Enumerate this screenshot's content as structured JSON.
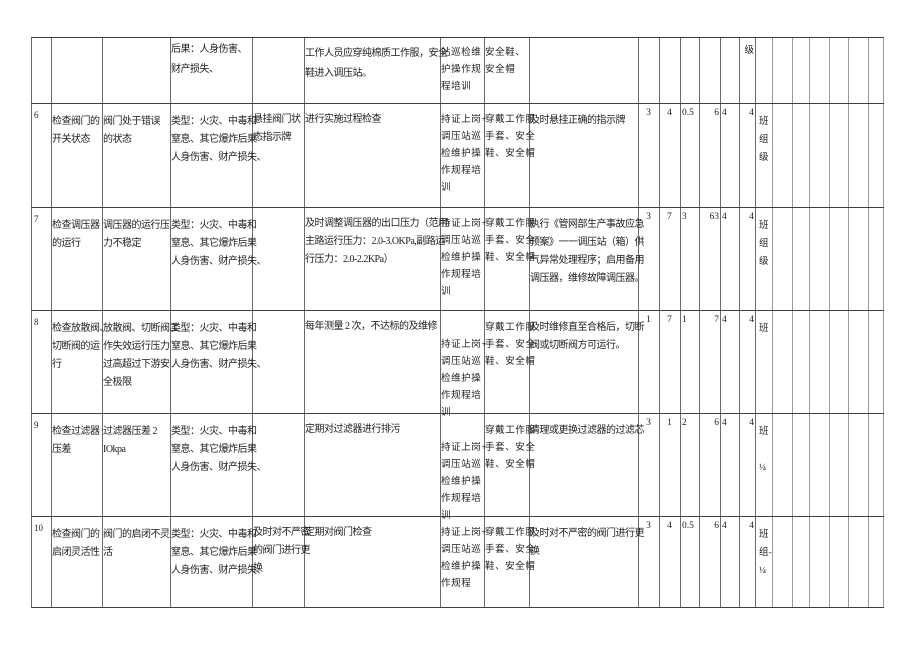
{
  "page": {
    "background": "#ffffff",
    "text_color": "#212121"
  },
  "grid_colors": {
    "horizontal": "#3f3f3f",
    "vertical": "#6a6a6a",
    "vertical_light": "#9a9a9a"
  },
  "table": {
    "rows": [
      {
        "serial_no": "",
        "inspection_item": "",
        "hazard_description": "",
        "risk_type_consequence": "后果：人身伤害、\n财产损失、",
        "engineering_measure": "",
        "management_measure": "工作人员应穿纯棉质工作服，安全\n鞋进入调压站。",
        "training_measure": "站巡检维\n护操作规\n程培训",
        "ppe_measure": "安全鞋、\n安全帽",
        "emergency_measure": "",
        "l": "",
        "e": "",
        "c": "",
        "d": "",
        "risk_grade": "",
        "control_grade": "级",
        "control_level": ""
      },
      {
        "serial_no": "6",
        "inspection_item": "检查阀门的\n开关状态",
        "hazard_description": "阀门处于错误\n的状态",
        "risk_type_consequence": "类型：火灾、中毒和\n窒息、其它爆炸后果\n人身伤害、财产损失、",
        "engineering_measure": "悬挂阀门状\n态指示牌",
        "management_measure": "进行实施过程检查",
        "training_measure": "持证上岗+\n调压站巡\n检维护操\n作规程培\n训",
        "ppe_measure": "穿戴工作服\n手套、安全\n鞋、安全帽",
        "emergency_measure": "及时悬挂正确的指示牌",
        "l": "3",
        "e": "4",
        "c": "0.5",
        "d": "6",
        "risk_grade": "4",
        "control_grade": "4",
        "control_level": "班\n组\n级"
      },
      {
        "serial_no": "7",
        "inspection_item": "检查调压器\n的运行",
        "hazard_description": "调压器的运行压\n力不稳定",
        "risk_type_consequence": "类型：火灾、中毒和\n窒息、其它爆炸后果\n人身伤害、财产损失、",
        "engineering_measure": "",
        "management_measure": "及时调整调压器的出口压力（范用:\n主路运行压力：2.0-3.OKPa,副路运\n行压力：2.0-2.2KPa）",
        "training_measure": "持证上岗+\n调压站巡\n检维护操\n作规程培\n训",
        "ppe_measure": "穿戴工作服\n手套、安全\n鞋、安全帽",
        "emergency_measure": "执行《管网部生产事故应急\n预案》一一调压站（箱）供\n气异常处理程序；启用备用\n调压器，维修故障调压器。",
        "l": "3",
        "e": "7",
        "c": "3",
        "d": "63",
        "risk_grade": "4",
        "control_grade": "4",
        "control_level": "班\n组\n级"
      },
      {
        "serial_no": "8",
        "inspection_item": "检查放散阀、\n切断阀的运\n行",
        "hazard_description": "放散阀、切断阀工\n作失效运行压力\n过高超过下游安\n全极限",
        "risk_type_consequence": "类型：火灾、中毒和\n窒息、其它爆炸后果\n人身伤害、财产损失、",
        "engineering_measure": "",
        "management_measure": "每年测量 2 次，不达标的及维修",
        "training_measure": "持证上岗+\n调压站巡\n检维护操\n作规程培\n训",
        "ppe_measure": "穿戴工作服\n手套、安全\n鞋、安全帽",
        "emergency_measure": "及时维修直至合格后，切断\n阀或切断阀方可运行。",
        "l": "1",
        "e": "7",
        "c": "1",
        "d": "7",
        "risk_grade": "4",
        "control_grade": "4",
        "control_level": "班"
      },
      {
        "serial_no": "9",
        "inspection_item": "检查过滤器\n压差",
        "hazard_description": "过滤器压差 2\nIOkpa",
        "risk_type_consequence": "类型：火灾、中毒和\n窒息、其它爆炸后果\n人身伤害、财产损失、",
        "engineering_measure": "",
        "management_measure": "定期对过滤器进行排污",
        "training_measure": "持证上岗+\n调压站巡\n检维护操\n作规程培\n训",
        "ppe_measure": "穿戴工作服\n手套、安全\n鞋、安全帽",
        "emergency_measure": "清理或更换过滤器的过滤芯",
        "l": "3",
        "e": "1",
        "c": "2",
        "d": "6",
        "risk_grade": "4",
        "control_grade": "4",
        "control_level": "班\n\n¼"
      },
      {
        "serial_no": "10",
        "inspection_item": "检查阀门的\n启闭灵活性",
        "hazard_description": "阀门的启闭不灵\n活",
        "risk_type_consequence": "类型：火灾、中毒和\n窒息、其它爆炸后果\n人身伤害、财产损失、",
        "engineering_measure": "及时对不严密\n的阀门进行更\n换",
        "management_measure": "定期对阀门检查",
        "training_measure": "持证上岗+\n调压站巡\n检维护操\n作规程",
        "ppe_measure": "穿戴工作服\n手套、安全\n鞋、安全帽",
        "emergency_measure": "及时对不严密的阀门进行更\n换",
        "l": "3",
        "e": "4",
        "c": "0.5",
        "d": "6",
        "risk_grade": "4",
        "control_grade": "4",
        "control_level": "班\n组-\n¼"
      }
    ]
  }
}
